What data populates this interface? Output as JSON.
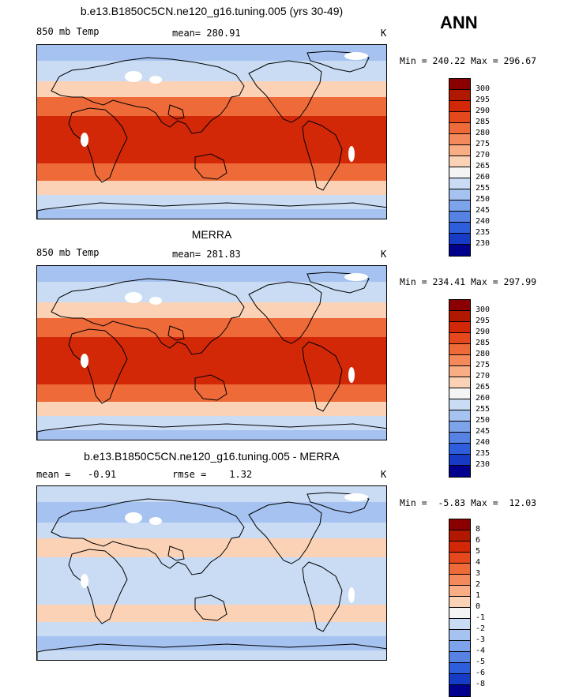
{
  "season": "ANN",
  "panels": [
    {
      "title": "b.e13.B1850C5CN.ne120_g16.tuning.005 (yrs 30-49)",
      "left_label": "850 mb Temp",
      "mid_label": "mean= 280.91",
      "units": "K",
      "minmax": "Min = 240.22 Max = 296.67",
      "colorbar_labels": [
        "300",
        "295",
        "290",
        "285",
        "280",
        "275",
        "270",
        "265",
        "260",
        "255",
        "250",
        "245",
        "240",
        "235",
        "230"
      ],
      "colorbar_colors": [
        "#8a0000",
        "#b01800",
        "#d22808",
        "#e4481c",
        "#ee6a38",
        "#f48a5c",
        "#f8ad84",
        "#fbd2b6",
        "#f4f4f4",
        "#c9dcf4",
        "#a5c2f0",
        "#7da3ea",
        "#5682e4",
        "#2f5edc",
        "#163bc6",
        "#00008c"
      ],
      "map_levels": {
        "polar": "#a5c2f0",
        "subpolar": "#c9dcf4",
        "temperate": "#fbd2b6",
        "warm": "#ee6a38",
        "tropic": "#d22808"
      }
    },
    {
      "title": "MERRA",
      "left_label": "850 mb Temp",
      "mid_label": "mean= 281.83",
      "units": "K",
      "minmax": "Min = 234.41 Max = 297.99",
      "colorbar_labels": [
        "300",
        "295",
        "290",
        "285",
        "280",
        "275",
        "270",
        "265",
        "260",
        "255",
        "250",
        "245",
        "240",
        "235",
        "230"
      ],
      "colorbar_colors": [
        "#8a0000",
        "#b01800",
        "#d22808",
        "#e4481c",
        "#ee6a38",
        "#f48a5c",
        "#f8ad84",
        "#fbd2b6",
        "#f4f4f4",
        "#c9dcf4",
        "#a5c2f0",
        "#7da3ea",
        "#5682e4",
        "#2f5edc",
        "#163bc6",
        "#00008c"
      ],
      "map_levels": {
        "polar": "#a5c2f0",
        "subpolar": "#c9dcf4",
        "temperate": "#fbd2b6",
        "warm": "#ee6a38",
        "tropic": "#d22808"
      }
    },
    {
      "title": "b.e13.B1850C5CN.ne120_g16.tuning.005 - MERRA",
      "left_label": "mean =   -0.91",
      "mid_label": "rmse =    1.32",
      "units": "K",
      "minmax": "Min =  -5.83 Max =  12.03",
      "colorbar_labels": [
        "8",
        "6",
        "5",
        "4",
        "3",
        "2",
        "1",
        "0",
        "-1",
        "-2",
        "-3",
        "-4",
        "-5",
        "-6",
        "-8"
      ],
      "colorbar_colors": [
        "#8a0000",
        "#b01800",
        "#d22808",
        "#e4481c",
        "#ee6a38",
        "#f48a5c",
        "#f8ad84",
        "#fbd2b6",
        "#f4f4f4",
        "#c9dcf4",
        "#a5c2f0",
        "#7da3ea",
        "#5682e4",
        "#2f5edc",
        "#163bc6",
        "#00008c"
      ],
      "map_levels": {
        "polar": "#c9dcf4",
        "subpolar": "#a5c2f0",
        "temperate": "#c9dcf4",
        "warm": "#fbd2b6",
        "tropic": "#c9dcf4"
      }
    }
  ]
}
